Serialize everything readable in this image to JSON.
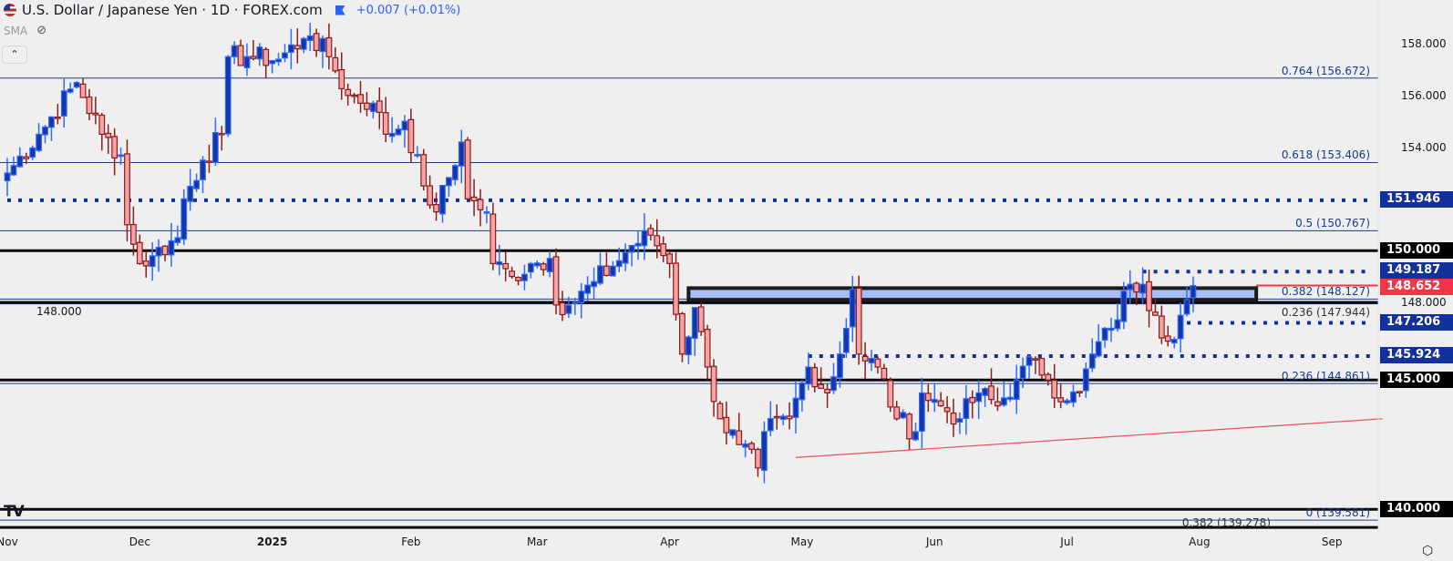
{
  "header": {
    "title": "U.S. Dollar / Japanese Yen · 1D · FOREX.com",
    "change": "+0.007 (+0.01%)",
    "indicator": "SMA"
  },
  "colors": {
    "up_body": "#1535a8",
    "up_border": "#2f6bff",
    "down_body": "#f5a3a3",
    "down_border": "#8e1b1b",
    "fib": "#1e3a8a",
    "level": "#0b0b0b",
    "dotted": "#12319c",
    "zone_fill": "#a9bdf5",
    "trend": "#f04a5a",
    "price": "#f23645"
  },
  "chart_data": {
    "type": "candlestick",
    "title": "U.S. Dollar / Japanese Yen · 1D · FOREX.com",
    "ylim": [
      139.3,
      158.9
    ],
    "y_ticks": [
      "158.000",
      "156.000",
      "154.000",
      "148.000"
    ],
    "x_ticks": [
      {
        "label": "Nov",
        "day": 0
      },
      {
        "label": "Dec",
        "day": 21
      },
      {
        "label": "2025",
        "day": 42
      },
      {
        "label": "Feb",
        "day": 64
      },
      {
        "label": "Mar",
        "day": 84
      },
      {
        "label": "Apr",
        "day": 105
      },
      {
        "label": "May",
        "day": 126
      },
      {
        "label": "Jun",
        "day": 147
      },
      {
        "label": "Jul",
        "day": 168
      },
      {
        "label": "Aug",
        "day": 189
      },
      {
        "label": "Sep",
        "day": 210
      }
    ],
    "close_waypoints": [
      [
        0,
        153
      ],
      [
        5,
        154.5
      ],
      [
        11,
        156.5
      ],
      [
        15,
        154.5
      ],
      [
        18,
        153.7
      ],
      [
        19,
        151
      ],
      [
        21,
        149.5
      ],
      [
        23,
        149.8
      ],
      [
        27,
        150.5
      ],
      [
        28,
        152
      ],
      [
        31,
        153.5
      ],
      [
        34,
        154.5
      ],
      [
        35,
        157.5
      ],
      [
        38,
        157.5
      ],
      [
        43,
        157.4
      ],
      [
        47,
        158.2
      ],
      [
        48,
        158.3
      ],
      [
        51,
        157.5
      ],
      [
        54,
        156
      ],
      [
        58,
        155.7
      ],
      [
        60,
        154.5
      ],
      [
        63,
        155
      ],
      [
        66,
        152.5
      ],
      [
        68,
        151.5
      ],
      [
        72,
        154.2
      ],
      [
        73,
        152
      ],
      [
        76,
        151.5
      ],
      [
        77,
        149.5
      ],
      [
        80,
        149
      ],
      [
        83,
        149.5
      ],
      [
        86,
        149.7
      ],
      [
        87,
        147.9
      ],
      [
        90,
        148
      ],
      [
        93,
        148.8
      ],
      [
        96,
        149.4
      ],
      [
        99,
        150.2
      ],
      [
        102,
        150.6
      ],
      [
        105,
        149.5
      ],
      [
        107,
        146
      ],
      [
        109,
        147.8
      ],
      [
        111,
        145.5
      ],
      [
        113,
        143.5
      ],
      [
        116,
        142.5
      ],
      [
        119,
        141.6
      ],
      [
        120,
        143
      ],
      [
        124,
        143.5
      ],
      [
        127,
        145.5
      ],
      [
        130,
        144.5
      ],
      [
        132,
        146
      ],
      [
        134,
        148.5
      ],
      [
        135,
        146
      ],
      [
        138,
        145.5
      ],
      [
        141,
        143.5
      ],
      [
        144,
        143
      ],
      [
        145,
        144.5
      ],
      [
        148,
        144
      ],
      [
        151,
        143.5
      ],
      [
        154,
        144.5
      ],
      [
        157,
        144
      ],
      [
        160,
        145
      ],
      [
        163,
        145.8
      ],
      [
        165,
        145
      ],
      [
        168,
        144.2
      ],
      [
        170,
        144.5
      ],
      [
        172,
        146
      ],
      [
        175,
        147
      ],
      [
        178,
        148.7
      ],
      [
        180,
        148.7
      ],
      [
        182,
        147.5
      ],
      [
        184,
        146.5
      ],
      [
        186,
        147.5
      ],
      [
        188,
        148.65
      ]
    ],
    "levels": [
      {
        "price": 150.0,
        "label": "150.000",
        "style": "solid-thick"
      },
      {
        "price": 148.0,
        "label": "148.000",
        "style": "solid-thick"
      },
      {
        "price": 145.0,
        "label": "145.000",
        "style": "solid-thick"
      },
      {
        "price": 140.0,
        "label": "140.000",
        "style": "solid-thick"
      }
    ],
    "dotted_levels": [
      {
        "price": 151.946,
        "label": "151.946",
        "from_day": 0
      },
      {
        "price": 149.187,
        "label": "149.187",
        "from_day": 180
      },
      {
        "price": 147.206,
        "label": "147.206",
        "from_day": 187
      },
      {
        "price": 145.924,
        "label": "145.924",
        "from_day": 127
      }
    ],
    "fib_levels": [
      {
        "price": 156.672,
        "label": "0.764 (156.672)"
      },
      {
        "price": 153.406,
        "label": "0.618 (153.406)"
      },
      {
        "price": 150.767,
        "label": "0.5 (150.767)"
      },
      {
        "price": 148.127,
        "label": "0.382 (148.127)"
      },
      {
        "price": 147.944,
        "label": "0.236 (147.944)"
      },
      {
        "price": 144.861,
        "label": "0.236 (144.861)"
      },
      {
        "price": 139.581,
        "label": "0 (139.581)"
      },
      {
        "price": 139.278,
        "label": "0.382 (139.278)"
      }
    ],
    "zone": {
      "top": 148.55,
      "bottom": 148.1,
      "from_day": 108,
      "to_day": 198
    },
    "trendline": {
      "from": [
        125,
        142.0
      ],
      "to": [
        218,
        143.5
      ]
    },
    "last_price": {
      "price": 148.652,
      "label": "148.652"
    }
  }
}
